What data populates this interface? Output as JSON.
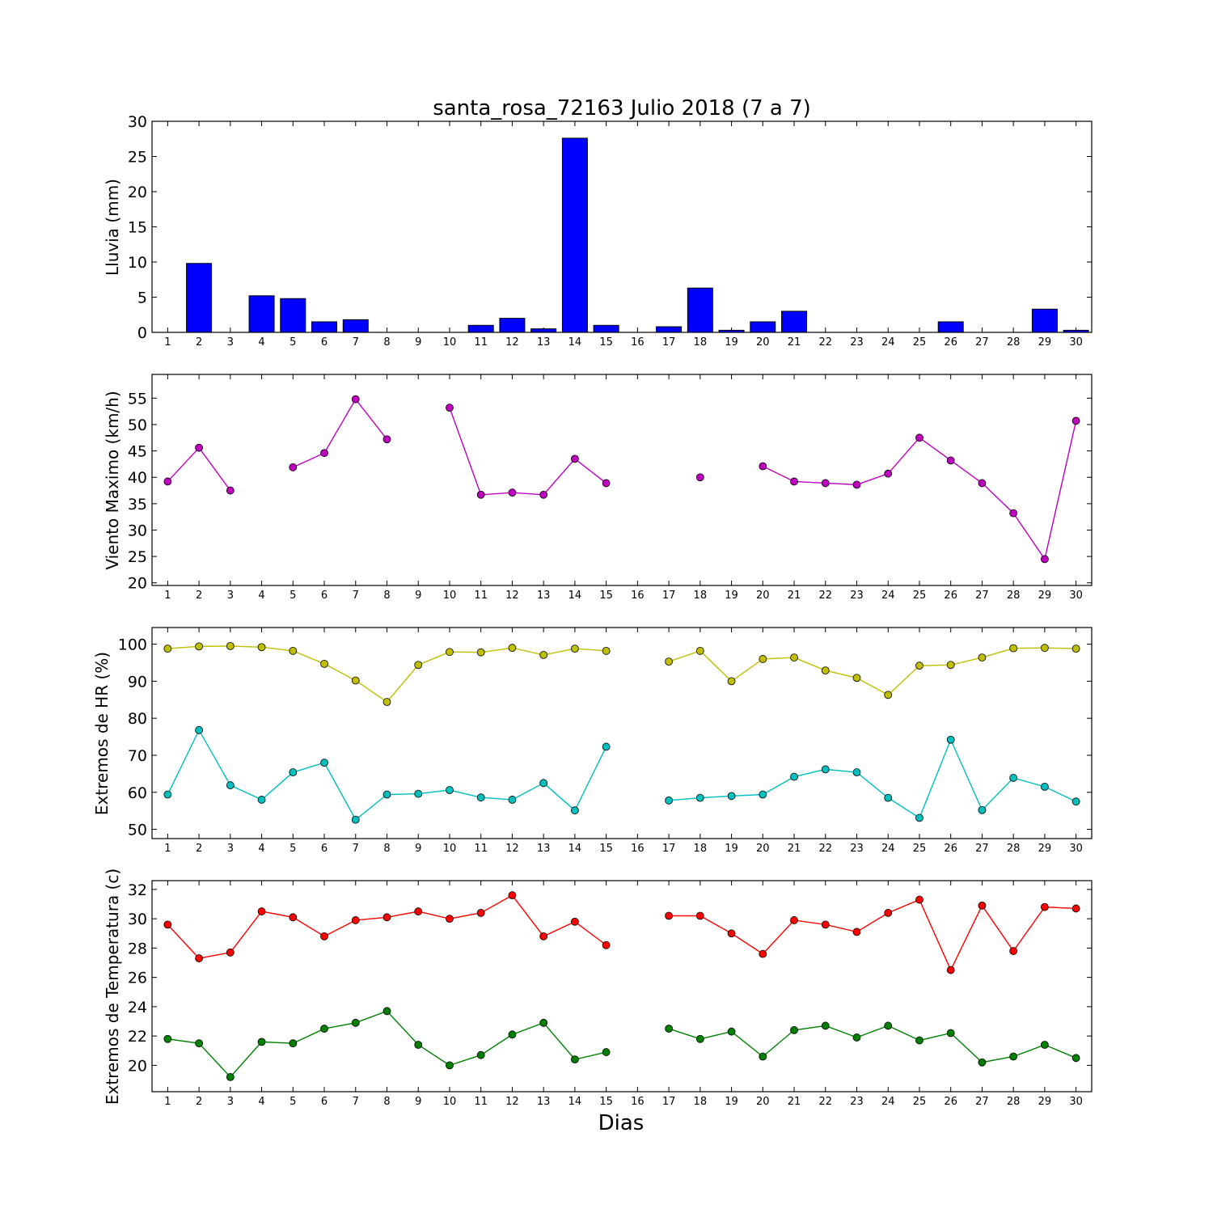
{
  "chart_data": [
    {
      "type": "bar",
      "title": "santa_rosa_72163 Julio 2018  (7 a 7)",
      "ylabel": "Lluvia (mm)",
      "ylim": [
        0,
        30
      ],
      "yticks": [
        0,
        5,
        10,
        15,
        20,
        25,
        30
      ],
      "x": [
        1,
        2,
        3,
        4,
        5,
        6,
        7,
        8,
        9,
        10,
        11,
        12,
        13,
        14,
        15,
        16,
        17,
        18,
        19,
        20,
        21,
        22,
        23,
        24,
        25,
        26,
        27,
        28,
        29,
        30
      ],
      "colors": {
        "bar": "#0000ff"
      },
      "series": [
        {
          "values": [
            0,
            9.8,
            0,
            5.2,
            4.8,
            1.5,
            1.8,
            0,
            0,
            0,
            1.0,
            2.0,
            0.5,
            27.6,
            1.0,
            0,
            0.8,
            6.3,
            0.3,
            1.5,
            3.0,
            0,
            0,
            0,
            0,
            1.5,
            0,
            0,
            3.3,
            0.3
          ]
        }
      ]
    },
    {
      "type": "line",
      "ylabel": "Viento Maximo (km/h)",
      "ylim": [
        19.5,
        59.5
      ],
      "yticks": [
        20,
        25,
        30,
        35,
        40,
        45,
        50,
        55
      ],
      "x": [
        1,
        2,
        3,
        4,
        5,
        6,
        7,
        8,
        9,
        10,
        11,
        12,
        13,
        14,
        15,
        16,
        17,
        18,
        19,
        20,
        21,
        22,
        23,
        24,
        25,
        26,
        27,
        28,
        29,
        30
      ],
      "series": [
        {
          "color": "#bf00bf",
          "values": [
            39.2,
            45.6,
            37.5,
            null,
            41.9,
            44.6,
            54.8,
            47.2,
            null,
            53.2,
            36.7,
            37.1,
            36.7,
            43.5,
            38.9,
            null,
            null,
            40.0,
            null,
            42.1,
            39.2,
            38.9,
            38.6,
            40.7,
            47.5,
            43.2,
            38.9,
            33.2,
            24.5,
            50.7
          ]
        }
      ]
    },
    {
      "type": "line",
      "ylabel": "Extremos de HR (%)",
      "ylim": [
        47.5,
        104.5
      ],
      "yticks": [
        50,
        60,
        70,
        80,
        90,
        100
      ],
      "x": [
        1,
        2,
        3,
        4,
        5,
        6,
        7,
        8,
        9,
        10,
        11,
        12,
        13,
        14,
        15,
        16,
        17,
        18,
        19,
        20,
        21,
        22,
        23,
        24,
        25,
        26,
        27,
        28,
        29,
        30
      ],
      "series": [
        {
          "color": "#bfbf00",
          "values": [
            98.8,
            99.4,
            99.5,
            99.2,
            98.2,
            94.7,
            90.2,
            84.4,
            94.4,
            97.9,
            97.8,
            99.0,
            97.1,
            98.8,
            98.2,
            null,
            95.3,
            98.2,
            90.0,
            96.0,
            96.4,
            92.9,
            90.9,
            86.3,
            94.2,
            94.4,
            96.4,
            98.9,
            99.0,
            98.8
          ]
        },
        {
          "color": "#00bfbf",
          "values": [
            59.4,
            76.8,
            61.9,
            58.0,
            65.4,
            68.0,
            52.6,
            59.4,
            59.6,
            60.6,
            58.6,
            58.0,
            62.5,
            55.1,
            72.3,
            null,
            57.8,
            58.5,
            59.0,
            59.4,
            64.2,
            66.2,
            65.4,
            58.5,
            53.1,
            74.2,
            55.2,
            63.9,
            61.5,
            57.5
          ]
        }
      ]
    },
    {
      "type": "line",
      "ylabel": "Extremos de Temperatura (c)",
      "xlabel": "Dias",
      "ylim": [
        18.2,
        32.6
      ],
      "yticks": [
        20,
        22,
        24,
        26,
        28,
        30,
        32
      ],
      "x": [
        1,
        2,
        3,
        4,
        5,
        6,
        7,
        8,
        9,
        10,
        11,
        12,
        13,
        14,
        15,
        16,
        17,
        18,
        19,
        20,
        21,
        22,
        23,
        24,
        25,
        26,
        27,
        28,
        29,
        30
      ],
      "series": [
        {
          "color": "#ff0000",
          "values": [
            29.6,
            27.3,
            27.7,
            30.5,
            30.1,
            28.8,
            29.9,
            30.1,
            30.5,
            30.0,
            30.4,
            31.6,
            28.8,
            29.8,
            28.2,
            null,
            30.2,
            30.2,
            29.0,
            27.6,
            29.9,
            29.6,
            29.1,
            30.4,
            31.3,
            26.5,
            30.9,
            27.8,
            30.8,
            30.7
          ]
        },
        {
          "color": "#008000",
          "values": [
            21.8,
            21.5,
            19.2,
            21.6,
            21.5,
            22.5,
            22.9,
            23.7,
            21.4,
            20.0,
            20.7,
            22.1,
            22.9,
            20.4,
            20.9,
            null,
            22.5,
            21.8,
            22.3,
            20.6,
            22.4,
            22.7,
            21.9,
            22.7,
            21.7,
            22.2,
            20.2,
            20.6,
            21.4,
            20.5
          ]
        }
      ]
    }
  ]
}
